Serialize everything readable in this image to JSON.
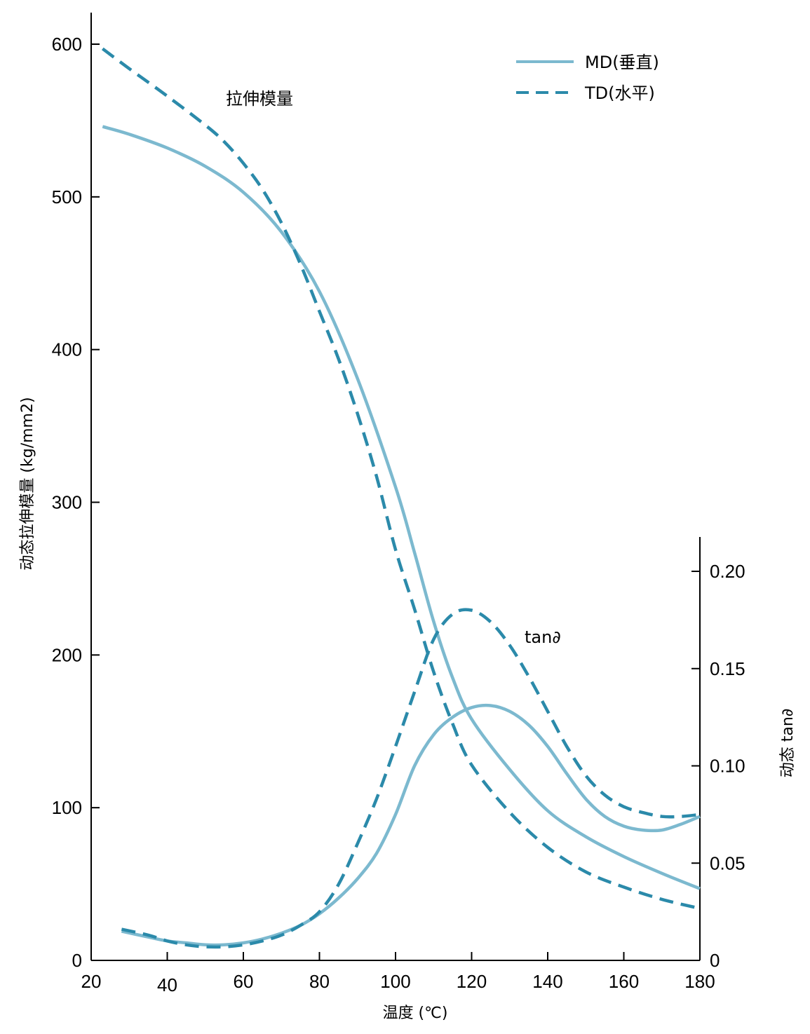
{
  "chart_data": {
    "type": "line",
    "xlabel": "温度 (℃)",
    "ylabel_left": "动态拉伸模量 (kg/mm2)",
    "ylabel_right": "动态 tan∂",
    "xlim": [
      20,
      180
    ],
    "ylim_left": [
      0,
      620
    ],
    "ylim_right": [
      0,
      0.22
    ],
    "x_ticks": [
      "20",
      "40",
      "60",
      "80",
      "100",
      "120",
      "140",
      "160",
      "180"
    ],
    "x_tick_values": [
      20,
      40,
      60,
      80,
      100,
      120,
      140,
      160,
      180
    ],
    "y_ticks_left": [
      "0",
      "100",
      "200",
      "300",
      "400",
      "500",
      "600"
    ],
    "y_tick_values_left": [
      0,
      100,
      200,
      300,
      400,
      500,
      600
    ],
    "y_ticks_right": [
      "0",
      "0.05",
      "0.10",
      "0.15",
      "0.20"
    ],
    "y_tick_values_right": [
      0,
      0.05,
      0.1,
      0.15,
      0.2
    ],
    "colors": {
      "md": "#7cb9cf",
      "td": "#2b8aaa"
    },
    "legend": {
      "placement": "top-right",
      "md_label": "MD(垂直)",
      "td_label": "TD(水平)"
    },
    "annotations": {
      "modulus": "拉伸模量",
      "tan": "tan∂"
    },
    "series": [
      {
        "name": "MD(垂直)",
        "group": "modulus",
        "axis": "left",
        "style": "solid",
        "x": [
          23,
          30,
          40,
          50,
          60,
          70,
          80,
          90,
          100,
          105,
          110,
          115,
          120,
          130,
          140,
          150,
          160,
          170,
          180
        ],
        "y": [
          546,
          541,
          532,
          520,
          503,
          477,
          438,
          381,
          310,
          267,
          222,
          185,
          158,
          125,
          98,
          81,
          68,
          57,
          47
        ]
      },
      {
        "name": "TD(水平)",
        "group": "modulus",
        "axis": "left",
        "style": "dashed",
        "x": [
          23,
          30,
          40,
          50,
          55,
          60,
          65,
          70,
          75,
          80,
          85,
          90,
          95,
          100,
          105,
          110,
          115,
          120,
          130,
          140,
          150,
          160,
          170,
          180
        ],
        "y": [
          597,
          584,
          566,
          547,
          536,
          522,
          505,
          483,
          456,
          425,
          394,
          358,
          317,
          269,
          230,
          189,
          155,
          128,
          97,
          74,
          58,
          48,
          40,
          34
        ]
      },
      {
        "name": "MD(垂直)",
        "group": "tan",
        "axis": "right",
        "style": "solid",
        "x": [
          28,
          35,
          40,
          45,
          50,
          55,
          60,
          65,
          70,
          75,
          80,
          85,
          90,
          95,
          100,
          105,
          110,
          115,
          120,
          125,
          130,
          135,
          140,
          145,
          150,
          155,
          160,
          165,
          170,
          175,
          180
        ],
        "y": [
          0.015,
          0.012,
          0.01,
          0.009,
          0.008,
          0.008,
          0.009,
          0.011,
          0.014,
          0.018,
          0.024,
          0.032,
          0.042,
          0.055,
          0.075,
          0.1,
          0.116,
          0.125,
          0.13,
          0.131,
          0.128,
          0.121,
          0.11,
          0.096,
          0.083,
          0.074,
          0.069,
          0.067,
          0.067,
          0.07,
          0.074
        ]
      },
      {
        "name": "TD(水平)",
        "group": "tan",
        "axis": "right",
        "style": "dashed",
        "x": [
          28,
          35,
          40,
          45,
          50,
          55,
          60,
          65,
          70,
          75,
          80,
          85,
          90,
          95,
          100,
          105,
          110,
          115,
          120,
          125,
          130,
          135,
          140,
          145,
          150,
          155,
          160,
          165,
          170,
          175,
          180
        ],
        "y": [
          0.016,
          0.013,
          0.01,
          0.008,
          0.007,
          0.007,
          0.008,
          0.01,
          0.013,
          0.018,
          0.025,
          0.039,
          0.06,
          0.083,
          0.11,
          0.138,
          0.165,
          0.178,
          0.18,
          0.174,
          0.162,
          0.146,
          0.128,
          0.11,
          0.095,
          0.085,
          0.079,
          0.076,
          0.074,
          0.074,
          0.075
        ]
      }
    ]
  }
}
